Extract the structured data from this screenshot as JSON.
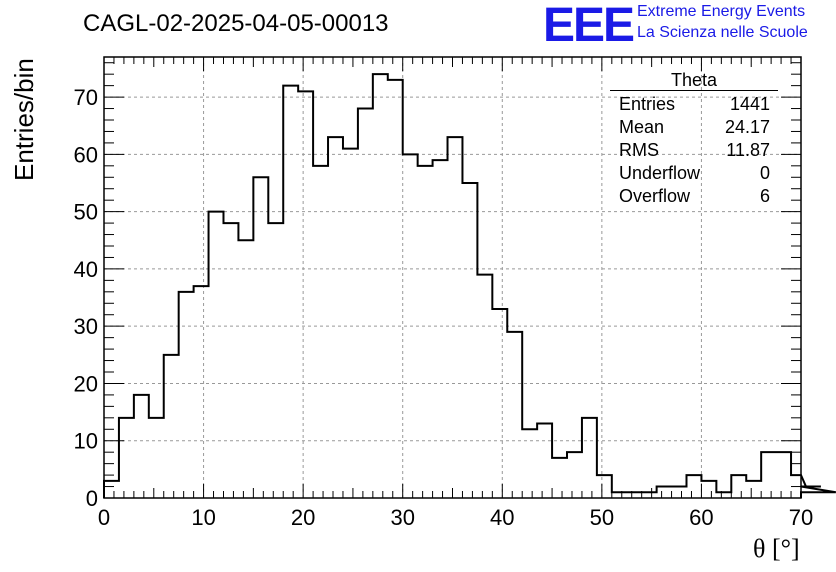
{
  "header": {
    "title": "CAGL-02-2025-04-05-00013",
    "logo_text": "EEE",
    "logo_line1": "Extreme Energy Events",
    "logo_line2": "La Scienza nelle Scuole"
  },
  "stats_box": {
    "title": "Theta",
    "rows": [
      {
        "label": "Entries",
        "value": "1441"
      },
      {
        "label": "Mean",
        "value": "24.17"
      },
      {
        "label": "RMS",
        "value": "11.87"
      },
      {
        "label": "Underflow",
        "value": "0"
      },
      {
        "label": "Overflow",
        "value": "6"
      }
    ]
  },
  "colors": {
    "line": "#000000",
    "grid": "#999999",
    "logo": "#1a1ae6"
  },
  "chart_data": {
    "type": "histogram",
    "xlabel": "θ [°]",
    "ylabel": "Entries/bin",
    "xlim": [
      0,
      70
    ],
    "ylim": [
      0,
      77
    ],
    "grid": true,
    "bin_width": 1.5,
    "bin_start": 0,
    "x_ticks": [
      0,
      10,
      20,
      30,
      40,
      50,
      60,
      70
    ],
    "y_ticks": [
      0,
      10,
      20,
      30,
      40,
      50,
      60,
      70
    ],
    "values": [
      3,
      14,
      18,
      14,
      25,
      36,
      37,
      50,
      48,
      45,
      56,
      48,
      72,
      71,
      58,
      63,
      61,
      68,
      74,
      73,
      60,
      58,
      59,
      63,
      55,
      39,
      33,
      29,
      12,
      13,
      7,
      8,
      14,
      4,
      1,
      1,
      1,
      2,
      2,
      4,
      3,
      1,
      4,
      3,
      8,
      8,
      4,
      2,
      2,
      1
    ]
  }
}
